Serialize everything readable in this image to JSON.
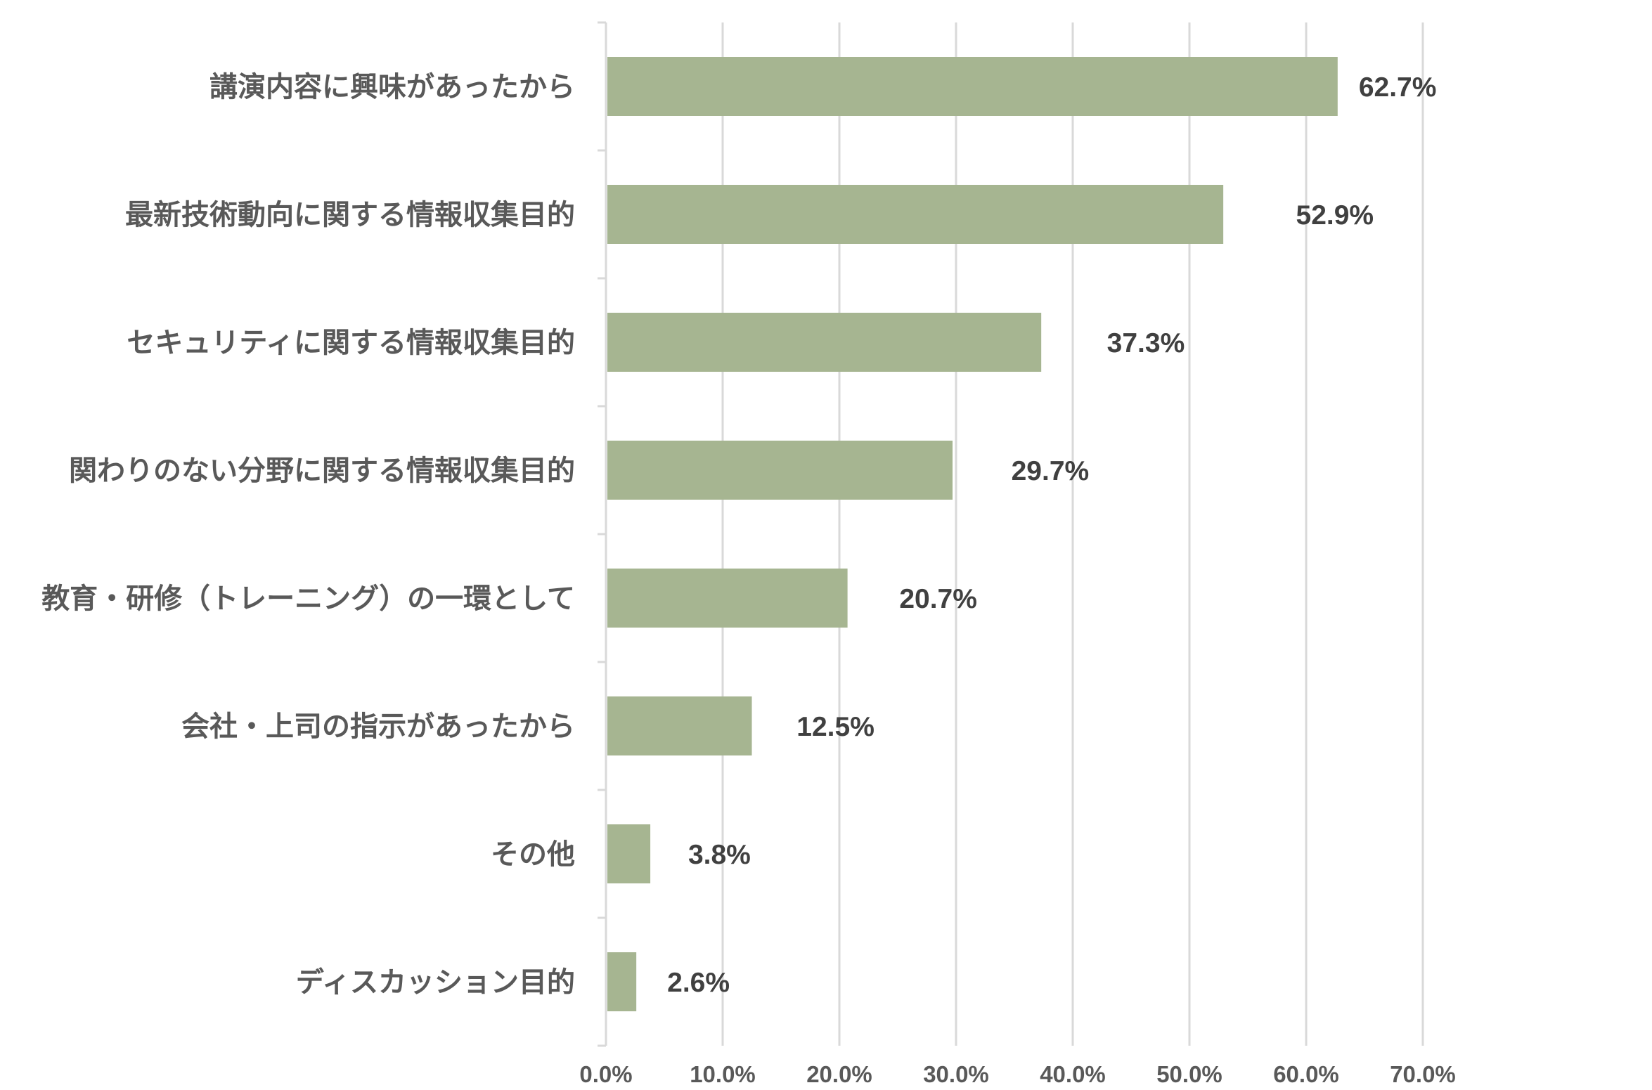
{
  "chart_data": {
    "type": "bar",
    "orientation": "horizontal",
    "categories": [
      "講演内容に興味があったから",
      "最新技術動向に関する情報収集目的",
      "セキュリティに関する情報収集目的",
      "関わりのない分野に関する情報収集目的",
      "教育・研修（トレーニング）の一環として",
      "会社・上司の指示があったから",
      "その他",
      "ディスカッション目的"
    ],
    "values": [
      62.7,
      52.9,
      37.3,
      29.7,
      20.7,
      12.5,
      3.8,
      2.6
    ],
    "value_labels": [
      "62.7%",
      "52.9%",
      "37.3%",
      "29.7%",
      "20.7%",
      "12.5%",
      "3.8%",
      "2.6%"
    ],
    "xlim": [
      0,
      70
    ],
    "xticks": [
      0,
      10,
      20,
      30,
      40,
      50,
      60,
      70
    ],
    "xtick_labels": [
      "0.0%",
      "10.0%",
      "20.0%",
      "30.0%",
      "40.0%",
      "50.0%",
      "60.0%",
      "70.0%"
    ],
    "title": "",
    "xlabel": "",
    "ylabel": "",
    "grid": true,
    "legend": "none",
    "colors": {
      "bar": "#a6b591",
      "grid": "#d9d9d9",
      "category_text": "#595959",
      "value_text": "#404040"
    }
  }
}
